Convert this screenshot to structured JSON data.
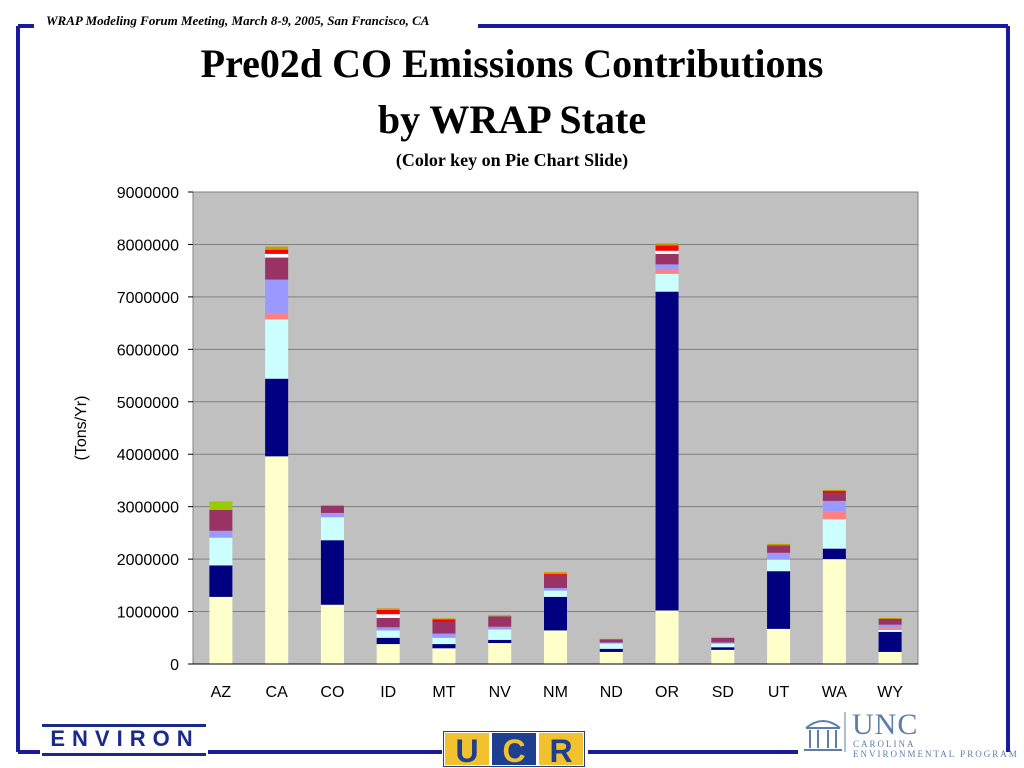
{
  "header": {
    "meeting": "WRAP Modeling Forum Meeting, March 8-9, 2005, San Francisco, CA"
  },
  "logos": {
    "environ": "ENVIRON",
    "ucr_u": "U",
    "ucr_c": "C",
    "ucr_r": "R",
    "unc": "UNC",
    "unc_line1": "CAROLINA",
    "unc_line2": "ENVIRONMENTAL PROGRAM"
  },
  "colors": {
    "frame_blue": "#1a1a9e",
    "plot_bg": "#c0c0c0",
    "ucr_blue": "#1e3f8f",
    "ucr_gold": "#f2c12e",
    "unc_blue": "#5b7fa8"
  },
  "chart_data": {
    "type": "bar",
    "stacked": true,
    "title": "Pre02d CO Emissions Contributions",
    "title_line2": "by WRAP State",
    "subtitle": "(Color key on Pie Chart Slide)",
    "xlabel": "",
    "ylabel": "(Tons/Yr)",
    "ylim": [
      0,
      9000000
    ],
    "yticks": [
      0,
      1000000,
      2000000,
      3000000,
      4000000,
      5000000,
      6000000,
      7000000,
      8000000,
      9000000
    ],
    "grid": true,
    "legend": "none",
    "categories": [
      "AZ",
      "CA",
      "CO",
      "ID",
      "MT",
      "NV",
      "NM",
      "ND",
      "OR",
      "SD",
      "UT",
      "WA",
      "WY"
    ],
    "series": [
      {
        "color": "#ffffcc",
        "values": [
          1280000,
          3960000,
          1130000,
          380000,
          300000,
          400000,
          640000,
          230000,
          1020000,
          270000,
          670000,
          2000000,
          230000
        ]
      },
      {
        "color": "#000080",
        "values": [
          600000,
          1480000,
          1230000,
          120000,
          80000,
          60000,
          640000,
          60000,
          6080000,
          50000,
          1100000,
          200000,
          380000
        ]
      },
      {
        "color": "#ccffff",
        "values": [
          530000,
          1130000,
          440000,
          140000,
          120000,
          200000,
          120000,
          100000,
          340000,
          70000,
          220000,
          560000,
          40000
        ]
      },
      {
        "color": "#ff8080",
        "values": [
          0,
          120000,
          0,
          0,
          0,
          0,
          0,
          0,
          80000,
          0,
          0,
          150000,
          40000
        ]
      },
      {
        "color": "#9999ff",
        "values": [
          130000,
          640000,
          80000,
          60000,
          80000,
          50000,
          50000,
          20000,
          100000,
          20000,
          130000,
          200000,
          60000
        ]
      },
      {
        "color": "#993366",
        "values": [
          400000,
          420000,
          140000,
          180000,
          220000,
          200000,
          250000,
          60000,
          200000,
          90000,
          140000,
          160000,
          90000
        ]
      },
      {
        "color": "#ffffff",
        "values": [
          0,
          70000,
          0,
          70000,
          0,
          0,
          0,
          0,
          60000,
          0,
          0,
          0,
          0
        ]
      },
      {
        "color": "#ff0000",
        "values": [
          0,
          80000,
          0,
          80000,
          50000,
          0,
          20000,
          0,
          100000,
          0,
          0,
          30000,
          20000
        ]
      },
      {
        "color": "#99cc00",
        "values": [
          160000,
          0,
          0,
          0,
          0,
          0,
          0,
          0,
          0,
          0,
          0,
          0,
          0
        ]
      },
      {
        "color": "#c0a000",
        "values": [
          0,
          60000,
          0,
          30000,
          20000,
          20000,
          30000,
          10000,
          40000,
          0,
          30000,
          20000,
          20000
        ]
      }
    ]
  }
}
